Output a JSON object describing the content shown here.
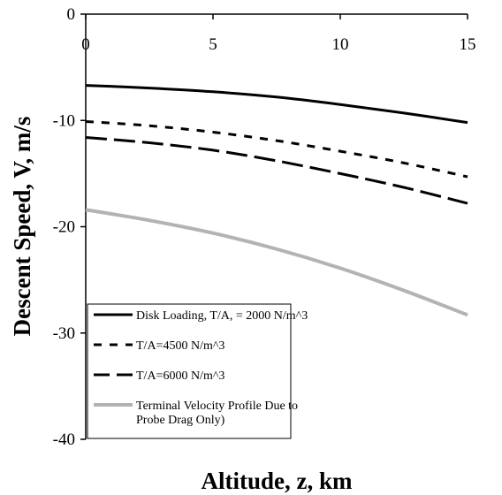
{
  "chart_data": {
    "type": "line",
    "title": "",
    "xlabel": "Altitude, z, km",
    "ylabel": "Descent Speed, V, m/s",
    "xlim": [
      0,
      15
    ],
    "ylim": [
      -40,
      0
    ],
    "x_axis_position": "top (at y = 0)",
    "xticks": [
      "0",
      "5",
      "10",
      "15"
    ],
    "yticks": [
      "0",
      "-10",
      "-20",
      "-30",
      "-40"
    ],
    "grid": false,
    "legend_position": "bottom-left",
    "x": [
      0,
      2.5,
      5,
      7.5,
      10,
      12.5,
      15
    ],
    "series": [
      {
        "name": "Disk Loading, T/A, = 2000 N/m^3",
        "style": "solid",
        "color": "#000000",
        "values": [
          -6.7,
          -6.95,
          -7.3,
          -7.8,
          -8.5,
          -9.3,
          -10.2
        ]
      },
      {
        "name": "T/A=4500 N/m^3",
        "style": "short-dash",
        "color": "#000000",
        "values": [
          -10.1,
          -10.5,
          -11.1,
          -11.9,
          -12.9,
          -14.0,
          -15.3
        ]
      },
      {
        "name": "T/A=6000 N/m^3",
        "style": "long-dash",
        "color": "#000000",
        "values": [
          -11.6,
          -12.1,
          -12.8,
          -13.8,
          -15.0,
          -16.3,
          -17.8
        ]
      },
      {
        "name": "Terminal Velocity Profile Due to Probe Drag Only)",
        "style": "solid",
        "color": "#b3b3b3",
        "values": [
          -18.4,
          -19.4,
          -20.6,
          -22.1,
          -23.9,
          -26.0,
          -28.3
        ]
      }
    ]
  }
}
